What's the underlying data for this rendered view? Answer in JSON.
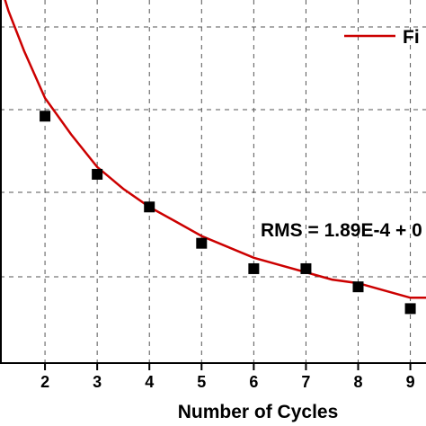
{
  "chart_data": {
    "type": "scatter",
    "xlabel": "Number of Cycles",
    "ylabel": "",
    "xlim": [
      1,
      9.3
    ],
    "ylim": [
      0,
      10
    ],
    "x_ticks": [
      2,
      3,
      4,
      5,
      6,
      7,
      8,
      9
    ],
    "y_ticks": [],
    "grid": true,
    "grid_style": "dashed",
    "legend": {
      "placement": "top-right",
      "entries": [
        {
          "label": "Fi",
          "style": "line",
          "color": "#cc0000"
        }
      ]
    },
    "annotation": "RMS = 1.89E-4 + 0",
    "series": [
      {
        "type": "scatter",
        "marker": "square",
        "color": "#000000",
        "x": [
          2,
          3,
          4,
          5,
          6,
          7,
          8,
          9
        ],
        "y": [
          6.8,
          5.2,
          4.3,
          3.3,
          2.6,
          2.6,
          2.1,
          1.5
        ]
      },
      {
        "type": "line",
        "color": "#cc0000",
        "x": [
          1.0,
          1.3,
          1.6,
          2.0,
          2.5,
          3.0,
          3.5,
          4.0,
          4.5,
          5.0,
          5.5,
          6.0,
          6.5,
          7.0,
          7.5,
          8.0,
          8.5,
          9.0,
          9.3
        ],
        "y": [
          11.1,
          9.7,
          8.6,
          7.3,
          6.3,
          5.4,
          4.8,
          4.3,
          3.9,
          3.5,
          3.2,
          2.9,
          2.7,
          2.5,
          2.3,
          2.2,
          2.0,
          1.8,
          1.8
        ]
      }
    ]
  }
}
